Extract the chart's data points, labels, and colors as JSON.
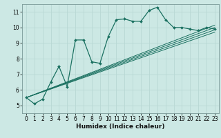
{
  "title": "",
  "xlabel": "Humidex (Indice chaleur)",
  "ylabel": "",
  "bg_color": "#cce8e4",
  "grid_color": "#b8d8d4",
  "line_color": "#1a7060",
  "spine_color": "#7a9a98",
  "xlim": [
    -0.5,
    23.5
  ],
  "ylim": [
    4.5,
    11.5
  ],
  "xticks": [
    0,
    1,
    2,
    3,
    4,
    5,
    6,
    7,
    8,
    9,
    10,
    11,
    12,
    13,
    14,
    15,
    16,
    17,
    18,
    19,
    20,
    21,
    22,
    23
  ],
  "yticks": [
    5,
    6,
    7,
    8,
    9,
    10,
    11
  ],
  "main_line_x": [
    0,
    1,
    2,
    3,
    4,
    5,
    6,
    7,
    8,
    9,
    10,
    11,
    12,
    13,
    14,
    15,
    16,
    17,
    18,
    19,
    20,
    21,
    22,
    23
  ],
  "main_line_y": [
    5.5,
    5.1,
    5.4,
    6.5,
    7.5,
    6.2,
    9.2,
    9.2,
    7.8,
    7.7,
    9.4,
    10.5,
    10.55,
    10.4,
    10.4,
    11.1,
    11.3,
    10.5,
    10.0,
    10.0,
    9.9,
    9.8,
    10.0,
    9.9
  ],
  "ref_lines": [
    {
      "x": [
        0,
        23
      ],
      "y": [
        5.5,
        9.7
      ]
    },
    {
      "x": [
        0,
        23
      ],
      "y": [
        5.5,
        9.85
      ]
    },
    {
      "x": [
        0,
        23
      ],
      "y": [
        5.5,
        10.0
      ]
    },
    {
      "x": [
        0,
        23
      ],
      "y": [
        5.5,
        10.15
      ]
    }
  ],
  "tick_labelsize": 5.5,
  "xlabel_fontsize": 6.5,
  "xlabel_fontweight": "bold"
}
